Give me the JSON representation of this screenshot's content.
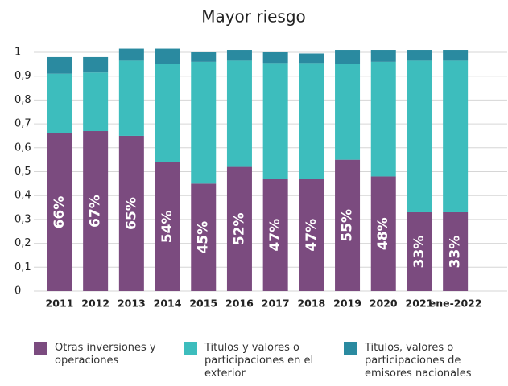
{
  "chart_data": {
    "type": "stacked_bar",
    "title": "Mayor riesgo",
    "categories": [
      "2011",
      "2012",
      "2013",
      "2014",
      "2015",
      "2016",
      "2017",
      "2018",
      "2019",
      "2020",
      "2021",
      "ene-2022"
    ],
    "series": [
      {
        "name": "Otras inversiones y operaciones",
        "color": "#7b4b7f",
        "values": [
          0.66,
          0.67,
          0.65,
          0.54,
          0.45,
          0.52,
          0.47,
          0.47,
          0.55,
          0.48,
          0.33,
          0.33
        ],
        "value_labels": [
          "66%",
          "67%",
          "65%",
          "54%",
          "45%",
          "52%",
          "47%",
          "47%",
          "55%",
          "48%",
          "33%",
          "33%"
        ]
      },
      {
        "name": "Titulos y valores o participaciones en el exterior",
        "color": "#3dbdbd",
        "values": [
          0.25,
          0.245,
          0.315,
          0.41,
          0.51,
          0.445,
          0.485,
          0.485,
          0.4,
          0.48,
          0.635,
          0.635
        ]
      },
      {
        "name": "Titulos, valores o participaciones de emisores nacionales",
        "color": "#2a8aa0",
        "values": [
          0.07,
          0.065,
          0.05,
          0.065,
          0.04,
          0.045,
          0.045,
          0.04,
          0.06,
          0.05,
          0.045,
          0.045
        ]
      }
    ],
    "ylim": [
      0,
      1
    ],
    "yticks": [
      0,
      {
        "value": 0.1,
        "label": "0,1"
      },
      {
        "value": 0.2,
        "label": "0,2"
      },
      {
        "value": 0.3,
        "label": "0,3"
      },
      {
        "value": 0.4,
        "label": "0,4"
      },
      {
        "value": 0.5,
        "label": "0,5"
      },
      {
        "value": 0.6,
        "label": "0,6"
      },
      {
        "value": 0.7,
        "label": "0,7"
      },
      {
        "value": 0.8,
        "label": "0,8"
      },
      {
        "value": 0.9,
        "label": "0,9"
      },
      1
    ],
    "grid": true
  }
}
